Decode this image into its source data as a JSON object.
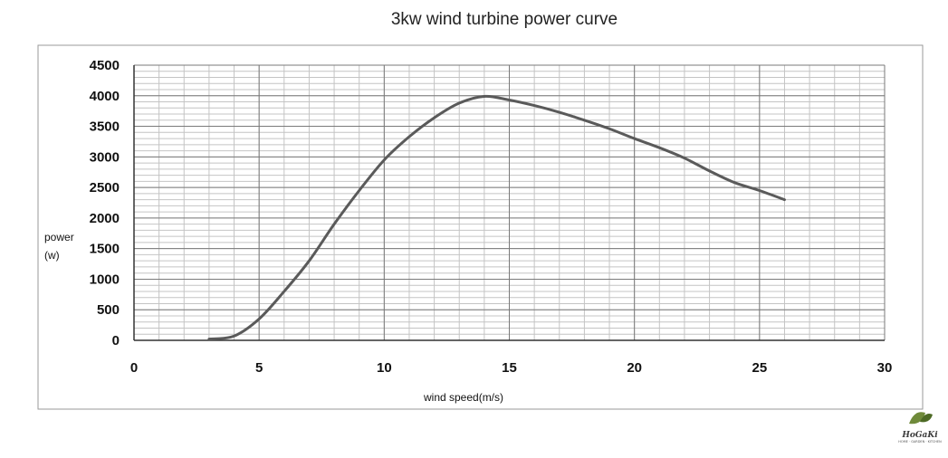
{
  "chart_data": {
    "type": "line",
    "title": "3kw wind turbine power curve",
    "xlabel": "wind speed(m/s)",
    "ylabel_lines": [
      "power",
      "(w)"
    ],
    "xlim": [
      0,
      30
    ],
    "ylim": [
      0,
      4500
    ],
    "x_ticks": [
      0,
      5,
      10,
      15,
      20,
      25,
      30
    ],
    "y_ticks": [
      0,
      500,
      1000,
      1500,
      2000,
      2500,
      3000,
      3500,
      4000,
      4500
    ],
    "x_minor_step": 1,
    "y_minor_step": 100,
    "grid": true,
    "line_color": "#5a5a5a",
    "series": [
      {
        "x": [
          3,
          4,
          5,
          6,
          7,
          8,
          9,
          10,
          11,
          12,
          13,
          14,
          15,
          16,
          17,
          18,
          19,
          20,
          21,
          22,
          23,
          24,
          25,
          26
        ],
        "values": [
          20,
          70,
          350,
          800,
          1300,
          1900,
          2450,
          2950,
          3330,
          3640,
          3880,
          3990,
          3930,
          3840,
          3730,
          3600,
          3460,
          3300,
          3150,
          2980,
          2770,
          2580,
          2450,
          2300
        ]
      }
    ]
  },
  "logo": {
    "text": "HoGaKi",
    "subtitle": "HOME · GARDEN · KITCHEN"
  }
}
